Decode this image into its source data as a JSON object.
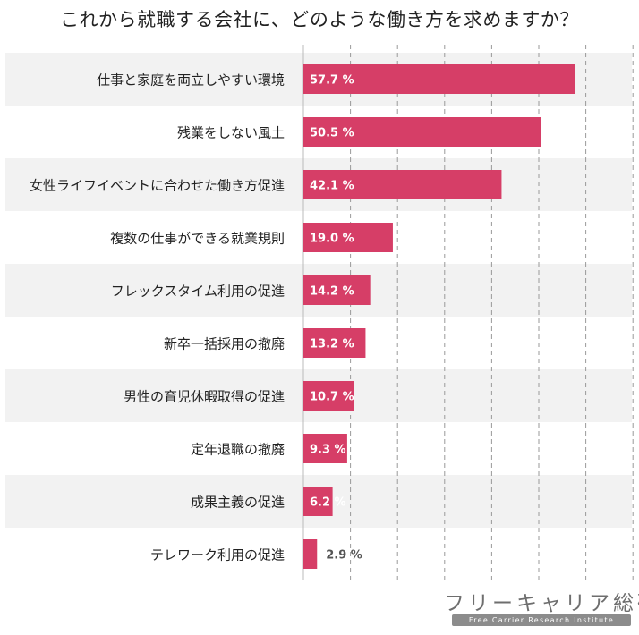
{
  "chart_data": {
    "type": "bar",
    "orientation": "horizontal",
    "title": "これから就職する会社に、どのような働き方を求めますか？",
    "categories": [
      "仕事と家庭を両立しやすい環境",
      "残業をしない風土",
      "女性ライフイベントに合わせた働き方促進",
      "複数の仕事ができる就業規則",
      "フレックスタイム利用の促進",
      "新卒一括採用の撤廃",
      "男性の育児休暇取得の促進",
      "定年退職の撤廃",
      "成果主義の促進",
      "テレワーク利用の促進"
    ],
    "values": [
      57.7,
      50.5,
      42.1,
      19.0,
      14.2,
      13.2,
      10.7,
      9.3,
      6.2,
      2.9
    ],
    "value_labels": [
      "57.7 %",
      "50.5 %",
      "42.1 %",
      "19.0 %",
      "14.2 %",
      "13.2 %",
      "10.7 %",
      "9.3 %",
      "6.2 %",
      "2.9 %"
    ],
    "xlim": [
      0,
      70
    ],
    "grid": true,
    "bar_color": "#d63e67",
    "band_color": "#f2f2f2",
    "label_color_inside": "#ffffff",
    "label_color_outside": "#555555"
  },
  "logo": {
    "name": "フリーキャリア総研",
    "tagline": "Free Carrier Research Institute"
  }
}
